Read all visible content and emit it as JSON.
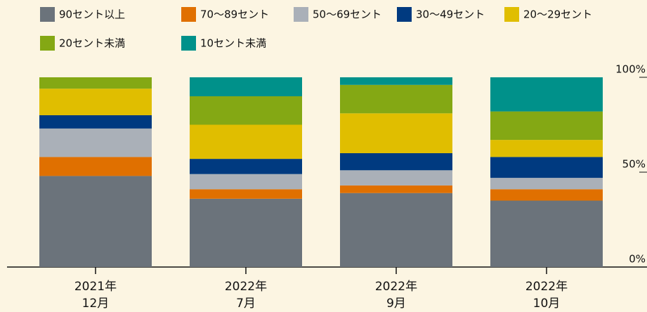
{
  "chart_data": {
    "type": "stacked_bar",
    "categories": [
      [
        "2021年",
        "12月"
      ],
      [
        "2022年",
        "7月"
      ],
      [
        "2022年",
        "9月"
      ],
      [
        "2022年",
        "10月"
      ]
    ],
    "series": [
      {
        "name": "90セント以上",
        "color": "#6b737b",
        "values": [
          48,
          36,
          39,
          35
        ]
      },
      {
        "name": "70〜89セント",
        "color": "#e07000",
        "values": [
          10,
          5,
          4,
          6
        ]
      },
      {
        "name": "50〜69セント",
        "color": "#aab0b8",
        "values": [
          15,
          8,
          8,
          6
        ]
      },
      {
        "name": "30〜49セント",
        "color": "#003a80",
        "values": [
          7,
          8,
          9,
          11
        ]
      },
      {
        "name": "20〜29セント",
        "color": "#e0be00",
        "values": [
          14,
          18,
          21,
          9
        ]
      },
      {
        "name": "20セント未満",
        "color": "#84a814",
        "values": [
          6,
          15,
          15,
          15
        ]
      },
      {
        "name": "10セント未満",
        "color": "#00918a",
        "values": [
          0,
          10,
          4,
          18
        ]
      }
    ],
    "ylim": [
      0,
      100
    ],
    "yticks": [
      {
        "value": 0,
        "label": "0%"
      },
      {
        "value": 50,
        "label": "50%"
      },
      {
        "value": 100,
        "label": "100%"
      }
    ]
  }
}
